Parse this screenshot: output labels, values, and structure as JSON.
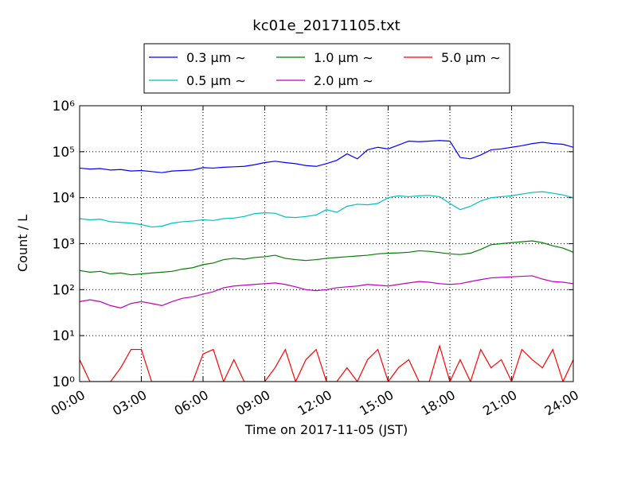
{
  "chart_data": {
    "type": "line",
    "title": "kc01e_20171105.txt",
    "xlabel": "Time on 2017-11-05 (JST)",
    "ylabel": "Count / L",
    "x": [
      0,
      0.5,
      1,
      1.5,
      2,
      2.5,
      3,
      3.5,
      4,
      4.5,
      5,
      5.5,
      6,
      6.5,
      7,
      7.5,
      8,
      8.5,
      9,
      9.5,
      10,
      10.5,
      11,
      11.5,
      12,
      12.5,
      13,
      13.5,
      14,
      14.5,
      15,
      15.5,
      16,
      16.5,
      17,
      17.5,
      18,
      18.5,
      19,
      19.5,
      20,
      20.5,
      21,
      21.5,
      22,
      22.5,
      23,
      23.5,
      24
    ],
    "xlim": [
      0,
      24
    ],
    "xticks": [
      {
        "value": 0,
        "label": "00:00"
      },
      {
        "value": 3,
        "label": "03:00"
      },
      {
        "value": 6,
        "label": "06:00"
      },
      {
        "value": 9,
        "label": "09:00"
      },
      {
        "value": 12,
        "label": "12:00"
      },
      {
        "value": 15,
        "label": "15:00"
      },
      {
        "value": 18,
        "label": "18:00"
      },
      {
        "value": 21,
        "label": "21:00"
      },
      {
        "value": 24,
        "label": "24:00"
      }
    ],
    "ylim": [
      1,
      1000000
    ],
    "yscale": "log",
    "yticks": [
      {
        "value": 1,
        "label": "10⁰"
      },
      {
        "value": 10,
        "label": "10¹"
      },
      {
        "value": 100,
        "label": "10²"
      },
      {
        "value": 1000,
        "label": "10³"
      },
      {
        "value": 10000,
        "label": "10⁴"
      },
      {
        "value": 100000,
        "label": "10⁵"
      },
      {
        "value": 1000000,
        "label": "10⁶"
      }
    ],
    "grid": true,
    "legend": "upper center",
    "series": [
      {
        "name": "0.3 μm ∼",
        "color": "#0000ff",
        "values": [
          44000,
          42000,
          43000,
          40000,
          41000,
          38000,
          39000,
          37000,
          35000,
          38000,
          39000,
          40000,
          45000,
          44000,
          46000,
          47000,
          48000,
          52000,
          58000,
          62000,
          58000,
          55000,
          50000,
          48000,
          55000,
          65000,
          90000,
          70000,
          110000,
          125000,
          115000,
          140000,
          170000,
          165000,
          170000,
          175000,
          170000,
          75000,
          70000,
          85000,
          110000,
          115000,
          125000,
          135000,
          150000,
          160000,
          150000,
          145000,
          125000
        ]
      },
      {
        "name": "0.5 μm ∼",
        "color": "#00bfbf",
        "values": [
          3500,
          3300,
          3400,
          3000,
          2900,
          2800,
          2600,
          2300,
          2400,
          2800,
          3000,
          3100,
          3300,
          3200,
          3500,
          3600,
          3900,
          4500,
          4700,
          4600,
          3800,
          3700,
          3900,
          4200,
          5500,
          4800,
          6500,
          7200,
          7000,
          7500,
          10000,
          11000,
          10500,
          11000,
          11200,
          10500,
          7500,
          5500,
          6500,
          8500,
          10000,
          10500,
          11000,
          12000,
          13000,
          13500,
          12500,
          11500,
          10000
        ]
      },
      {
        "name": "1.0 μm ∼",
        "color": "#008000",
        "values": [
          260,
          240,
          250,
          220,
          230,
          210,
          220,
          230,
          240,
          250,
          280,
          300,
          350,
          380,
          450,
          480,
          460,
          500,
          520,
          560,
          480,
          450,
          430,
          450,
          480,
          500,
          520,
          540,
          560,
          600,
          620,
          630,
          650,
          700,
          680,
          640,
          600,
          580,
          620,
          750,
          950,
          1000,
          1050,
          1100,
          1150,
          1050,
          900,
          800,
          650
        ]
      },
      {
        "name": "2.0 μm ∼",
        "color": "#bf00bf",
        "values": [
          55,
          60,
          55,
          45,
          40,
          50,
          55,
          50,
          45,
          55,
          65,
          70,
          80,
          90,
          110,
          120,
          125,
          130,
          135,
          140,
          130,
          115,
          100,
          95,
          100,
          110,
          115,
          120,
          130,
          125,
          120,
          130,
          140,
          150,
          145,
          135,
          130,
          135,
          150,
          165,
          180,
          185,
          190,
          195,
          200,
          170,
          150,
          145,
          135
        ]
      },
      {
        "name": "5.0 μm ∼",
        "color": "#ff0000",
        "values": [
          3,
          1,
          1,
          1,
          2,
          5,
          5,
          1,
          1,
          1,
          1,
          1,
          4,
          5,
          1,
          3,
          1,
          1,
          1,
          2,
          5,
          1,
          3,
          5,
          1,
          1,
          2,
          1,
          3,
          5,
          1,
          2,
          3,
          1,
          1,
          6,
          1,
          3,
          1,
          5,
          2,
          3,
          1,
          5,
          3,
          2,
          5,
          1,
          3
        ]
      }
    ]
  }
}
